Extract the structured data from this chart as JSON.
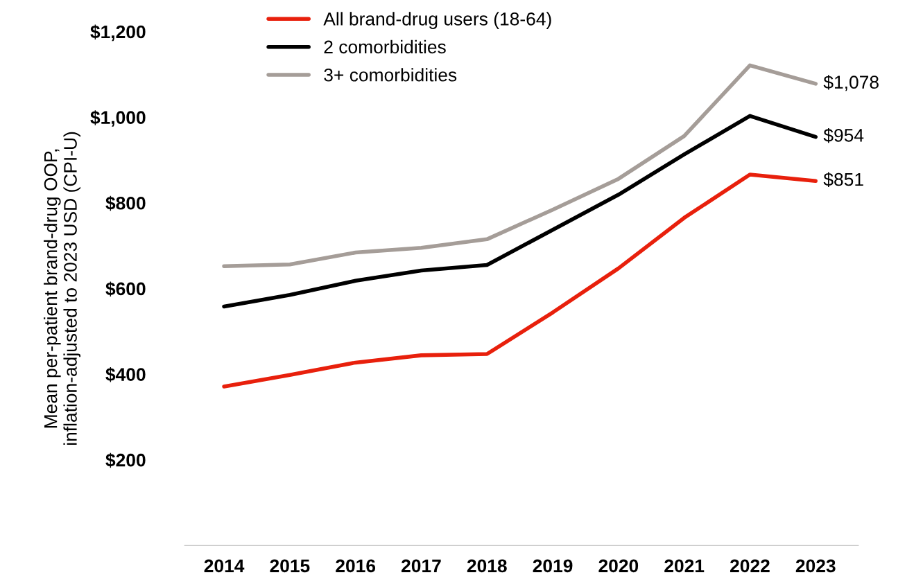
{
  "chart_data": {
    "type": "line",
    "ylabel": "Mean per-patient brand-drug OOP,\ninflation-adjusted to 2023 USD (CPI-U)",
    "categories": [
      "2014",
      "2015",
      "2016",
      "2017",
      "2018",
      "2019",
      "2020",
      "2021",
      "2022",
      "2023"
    ],
    "series": [
      {
        "name": "All brand-drug users (18-64)",
        "color": "#e8200c",
        "values": [
          371,
          398,
          427,
          444,
          447,
          544,
          647,
          765,
          866,
          851
        ]
      },
      {
        "name": "2 comorbidities",
        "color": "#000000",
        "values": [
          558,
          585,
          618,
          642,
          655,
          737,
          819,
          913,
          1003,
          954
        ]
      },
      {
        "name": "3+ comorbidities",
        "color": "#a59d98",
        "values": [
          652,
          656,
          684,
          695,
          715,
          784,
          856,
          956,
          1121,
          1078
        ]
      }
    ],
    "ylim": [
      0,
      1200
    ],
    "yticks": [
      {
        "value": 200,
        "label": "$200"
      },
      {
        "value": 400,
        "label": "$400"
      },
      {
        "value": 600,
        "label": "$600"
      },
      {
        "value": 800,
        "label": "$800"
      },
      {
        "value": 1000,
        "label": "$1,000"
      },
      {
        "value": 1200,
        "label": "$1,200"
      }
    ],
    "annotations": [
      {
        "text": "$851",
        "x": "2023",
        "y": 851
      },
      {
        "text": "$954",
        "x": "2023",
        "y": 954
      },
      {
        "text": "$1,078",
        "x": "2023",
        "y": 1078
      }
    ],
    "legend": "top left",
    "grid": false,
    "marker": "none",
    "line_style": "solid"
  }
}
